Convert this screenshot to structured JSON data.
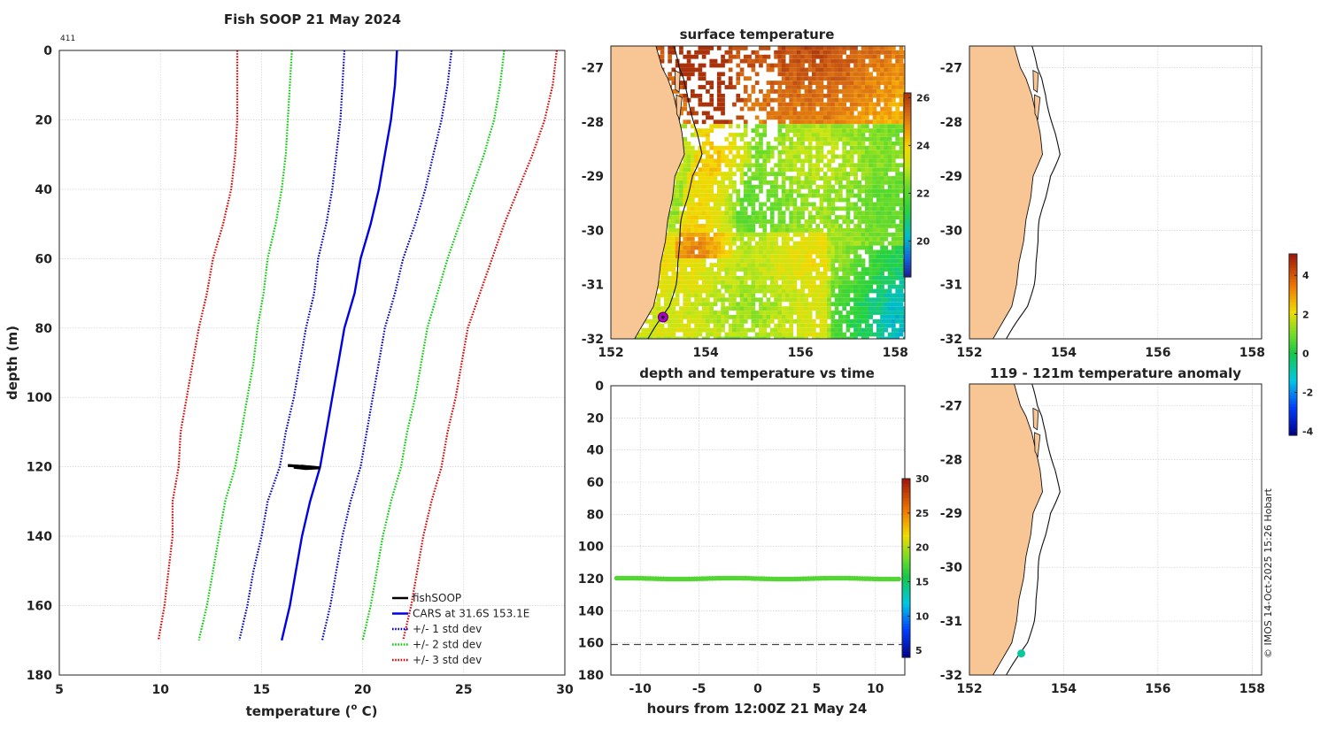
{
  "colors": {
    "land": "#f8c595",
    "grid": "#c8c8c8",
    "fishsoop": "#000000",
    "cars": "#0000e6",
    "std1": "#0000cc",
    "std2": "#00d000",
    "std3": "#e00000",
    "marker": "#b000d0",
    "dashed": "#444444"
  },
  "chart_data": [
    {
      "id": "profile",
      "type": "line",
      "title": "Fish SOOP 21 May 2024",
      "corner_label": "411",
      "xlabel": "temperature (",
      "xlabel_sup": "o",
      "xlabel_tail": " C)",
      "ylabel": "depth (m)",
      "xlim": [
        5,
        30
      ],
      "ylim": [
        0,
        180
      ],
      "xticks": [
        5,
        10,
        15,
        20,
        25,
        30
      ],
      "yticks": [
        0,
        20,
        40,
        60,
        80,
        100,
        120,
        140,
        160,
        180
      ],
      "legend": {
        "placement": "bottom-right",
        "entries": [
          "fishSOOP",
          "CARS at 31.6S 153.1E",
          "+/- 1 std dev",
          "+/- 2 std dev",
          "+/- 3 std dev"
        ]
      },
      "series": [
        {
          "name": "CARS at 31.6S 153.1E",
          "style": "solid",
          "color": "cars",
          "depth": [
            0,
            10,
            20,
            30,
            40,
            50,
            60,
            70,
            80,
            90,
            100,
            110,
            120,
            130,
            140,
            150,
            160,
            170
          ],
          "temp": [
            21.7,
            21.6,
            21.4,
            21.1,
            20.8,
            20.4,
            19.9,
            19.6,
            19.1,
            18.8,
            18.5,
            18.2,
            17.9,
            17.4,
            17.0,
            16.7,
            16.4,
            16.0
          ]
        },
        {
          "name": "+1 std dev",
          "style": "dotted",
          "color": "std1",
          "depth": [
            0,
            10,
            20,
            30,
            40,
            50,
            60,
            70,
            80,
            90,
            100,
            110,
            120,
            130,
            140,
            150,
            160,
            170
          ],
          "temp": [
            24.4,
            24.2,
            23.9,
            23.5,
            23.1,
            22.6,
            22.0,
            21.6,
            21.1,
            20.8,
            20.5,
            20.2,
            19.9,
            19.4,
            19.0,
            18.7,
            18.4,
            18.0
          ]
        },
        {
          "name": "-1 std dev",
          "style": "dotted",
          "color": "std1",
          "depth": [
            0,
            10,
            20,
            30,
            40,
            50,
            60,
            70,
            80,
            90,
            100,
            110,
            120,
            130,
            140,
            150,
            160,
            170
          ],
          "temp": [
            19.1,
            19.0,
            18.9,
            18.7,
            18.5,
            18.2,
            17.8,
            17.6,
            17.2,
            16.9,
            16.6,
            16.2,
            15.9,
            15.3,
            15.0,
            14.6,
            14.3,
            13.9
          ]
        },
        {
          "name": "+2 std dev",
          "style": "dotted",
          "color": "std2",
          "depth": [
            0,
            10,
            20,
            30,
            40,
            50,
            60,
            70,
            80,
            90,
            100,
            110,
            120,
            130,
            140,
            150,
            160,
            170
          ],
          "temp": [
            27.0,
            26.8,
            26.5,
            26.0,
            25.4,
            24.8,
            24.2,
            23.7,
            23.2,
            22.9,
            22.6,
            22.2,
            21.9,
            21.4,
            21.0,
            20.7,
            20.4,
            20.0
          ]
        },
        {
          "name": "-2 std dev",
          "style": "dotted",
          "color": "std2",
          "depth": [
            0,
            10,
            20,
            30,
            40,
            50,
            60,
            70,
            80,
            90,
            100,
            110,
            120,
            130,
            140,
            150,
            160,
            170
          ],
          "temp": [
            16.5,
            16.4,
            16.3,
            16.2,
            16.0,
            15.7,
            15.3,
            15.1,
            14.8,
            14.6,
            14.3,
            14.0,
            13.7,
            13.2,
            12.9,
            12.6,
            12.3,
            11.9
          ]
        },
        {
          "name": "+3 std dev",
          "style": "dotted",
          "color": "std3",
          "depth": [
            0,
            10,
            20,
            30,
            40,
            50,
            60,
            70,
            80,
            90,
            100,
            110,
            120,
            130,
            140,
            150,
            160,
            170
          ],
          "temp": [
            29.6,
            29.4,
            29.0,
            28.4,
            27.7,
            27.0,
            26.4,
            25.8,
            25.2,
            24.9,
            24.6,
            24.2,
            23.9,
            23.4,
            23.0,
            22.7,
            22.4,
            22.0
          ]
        },
        {
          "name": "-3 std dev",
          "style": "dotted",
          "color": "std3",
          "depth": [
            0,
            10,
            20,
            30,
            40,
            50,
            60,
            70,
            80,
            90,
            100,
            110,
            120,
            130,
            140,
            150,
            160,
            170
          ],
          "temp": [
            13.8,
            13.8,
            13.8,
            13.7,
            13.5,
            13.1,
            12.6,
            12.3,
            11.9,
            11.6,
            11.3,
            11.0,
            10.9,
            10.6,
            10.6,
            10.4,
            10.2,
            9.9
          ]
        },
        {
          "name": "fishSOOP",
          "style": "solid",
          "color": "fishsoop",
          "depth": [
            119.6,
            119.8,
            120.0,
            120.3,
            120.5,
            120.1,
            119.8,
            120.2
          ],
          "temp": [
            16.3,
            16.8,
            17.4,
            17.9,
            17.2,
            16.6,
            17.0,
            17.6
          ]
        }
      ]
    },
    {
      "id": "sst_map",
      "type": "heatmap",
      "title": "surface temperature",
      "xlim": [
        152,
        158.2
      ],
      "ylim": [
        -32,
        -26.6
      ],
      "xticks": [
        152,
        154,
        156,
        158
      ],
      "yticks": [
        -27,
        -28,
        -29,
        -30,
        -31,
        -32
      ],
      "colorbar": {
        "min": 18.5,
        "max": 26.2,
        "ticks": [
          20,
          22,
          24,
          26
        ]
      },
      "marker": {
        "lon": 153.1,
        "lat": -31.6
      }
    },
    {
      "id": "map_blank",
      "type": "map",
      "xlim": [
        152,
        158.2
      ],
      "ylim": [
        -32,
        -26.6
      ],
      "xticks": [
        152,
        154,
        156,
        158
      ],
      "yticks": [
        -27,
        -28,
        -29,
        -30,
        -31,
        -32
      ],
      "colorbar": {
        "min": -4.2,
        "max": 5.1,
        "ticks": [
          4,
          2,
          0,
          -2,
          -4
        ]
      }
    },
    {
      "id": "time_depth",
      "type": "scatter",
      "title": "depth and temperature vs time",
      "xlabel": "hours from 12:00Z 21 May 24",
      "xlim": [
        -12.5,
        12.5
      ],
      "ylim": [
        0,
        180
      ],
      "xticks": [
        -10,
        -5,
        0,
        5,
        10
      ],
      "yticks": [
        0,
        20,
        40,
        60,
        80,
        100,
        120,
        140,
        160,
        180
      ],
      "depth_mean": 120,
      "point_temp": 17.5,
      "bottom_line_depth": 161,
      "colorbar": {
        "min": 4,
        "max": 30,
        "ticks": [
          30,
          25,
          20,
          15,
          10,
          5
        ]
      }
    },
    {
      "id": "anomaly_map",
      "type": "map",
      "title": "119 - 121m temperature anomaly",
      "xlim": [
        152,
        158.2
      ],
      "ylim": [
        -32,
        -26.6
      ],
      "xticks": [
        152,
        154,
        156,
        158
      ],
      "yticks": [
        -27,
        -28,
        -29,
        -30,
        -31,
        -32
      ],
      "point": {
        "lon": 153.1,
        "lat": -31.6,
        "anomaly": -1.5
      }
    }
  ],
  "footer": {
    "credit": "© IMOS 14-Oct-2025 15:26 Hobart"
  }
}
